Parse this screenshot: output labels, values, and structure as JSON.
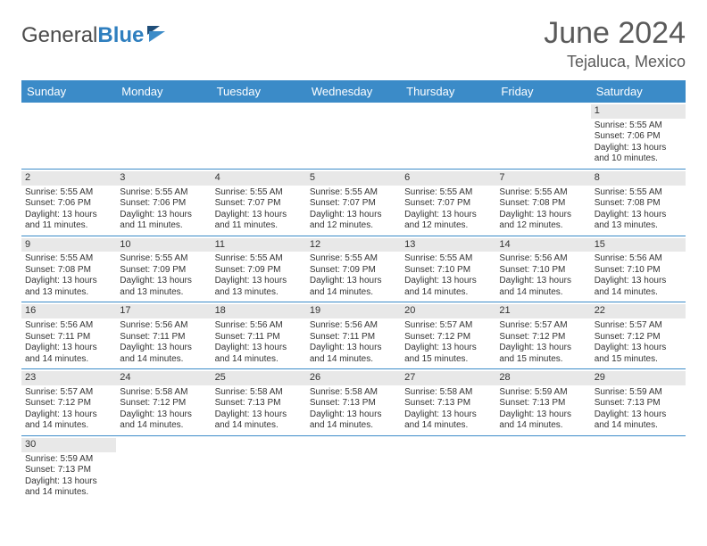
{
  "logo": {
    "text1": "General",
    "text2": "Blue"
  },
  "title": "June 2024",
  "location": "Tejaluca, Mexico",
  "colors": {
    "header_bg": "#3b8bc8",
    "header_text": "#ffffff",
    "daynum_bg": "#e8e8e8",
    "rule": "#3b8bc8",
    "logo_blue": "#2f7fbf",
    "text": "#333333"
  },
  "weekdays": [
    "Sunday",
    "Monday",
    "Tuesday",
    "Wednesday",
    "Thursday",
    "Friday",
    "Saturday"
  ],
  "weeks": [
    [
      {
        "n": "",
        "empty": true
      },
      {
        "n": "",
        "empty": true
      },
      {
        "n": "",
        "empty": true
      },
      {
        "n": "",
        "empty": true
      },
      {
        "n": "",
        "empty": true
      },
      {
        "n": "",
        "empty": true
      },
      {
        "n": "1",
        "sr": "5:55 AM",
        "ss": "7:06 PM",
        "dl": "13 hours and 10 minutes."
      }
    ],
    [
      {
        "n": "2",
        "sr": "5:55 AM",
        "ss": "7:06 PM",
        "dl": "13 hours and 11 minutes."
      },
      {
        "n": "3",
        "sr": "5:55 AM",
        "ss": "7:06 PM",
        "dl": "13 hours and 11 minutes."
      },
      {
        "n": "4",
        "sr": "5:55 AM",
        "ss": "7:07 PM",
        "dl": "13 hours and 11 minutes."
      },
      {
        "n": "5",
        "sr": "5:55 AM",
        "ss": "7:07 PM",
        "dl": "13 hours and 12 minutes."
      },
      {
        "n": "6",
        "sr": "5:55 AM",
        "ss": "7:07 PM",
        "dl": "13 hours and 12 minutes."
      },
      {
        "n": "7",
        "sr": "5:55 AM",
        "ss": "7:08 PM",
        "dl": "13 hours and 12 minutes."
      },
      {
        "n": "8",
        "sr": "5:55 AM",
        "ss": "7:08 PM",
        "dl": "13 hours and 13 minutes."
      }
    ],
    [
      {
        "n": "9",
        "sr": "5:55 AM",
        "ss": "7:08 PM",
        "dl": "13 hours and 13 minutes."
      },
      {
        "n": "10",
        "sr": "5:55 AM",
        "ss": "7:09 PM",
        "dl": "13 hours and 13 minutes."
      },
      {
        "n": "11",
        "sr": "5:55 AM",
        "ss": "7:09 PM",
        "dl": "13 hours and 13 minutes."
      },
      {
        "n": "12",
        "sr": "5:55 AM",
        "ss": "7:09 PM",
        "dl": "13 hours and 14 minutes."
      },
      {
        "n": "13",
        "sr": "5:55 AM",
        "ss": "7:10 PM",
        "dl": "13 hours and 14 minutes."
      },
      {
        "n": "14",
        "sr": "5:56 AM",
        "ss": "7:10 PM",
        "dl": "13 hours and 14 minutes."
      },
      {
        "n": "15",
        "sr": "5:56 AM",
        "ss": "7:10 PM",
        "dl": "13 hours and 14 minutes."
      }
    ],
    [
      {
        "n": "16",
        "sr": "5:56 AM",
        "ss": "7:11 PM",
        "dl": "13 hours and 14 minutes."
      },
      {
        "n": "17",
        "sr": "5:56 AM",
        "ss": "7:11 PM",
        "dl": "13 hours and 14 minutes."
      },
      {
        "n": "18",
        "sr": "5:56 AM",
        "ss": "7:11 PM",
        "dl": "13 hours and 14 minutes."
      },
      {
        "n": "19",
        "sr": "5:56 AM",
        "ss": "7:11 PM",
        "dl": "13 hours and 14 minutes."
      },
      {
        "n": "20",
        "sr": "5:57 AM",
        "ss": "7:12 PM",
        "dl": "13 hours and 15 minutes."
      },
      {
        "n": "21",
        "sr": "5:57 AM",
        "ss": "7:12 PM",
        "dl": "13 hours and 15 minutes."
      },
      {
        "n": "22",
        "sr": "5:57 AM",
        "ss": "7:12 PM",
        "dl": "13 hours and 15 minutes."
      }
    ],
    [
      {
        "n": "23",
        "sr": "5:57 AM",
        "ss": "7:12 PM",
        "dl": "13 hours and 14 minutes."
      },
      {
        "n": "24",
        "sr": "5:58 AM",
        "ss": "7:12 PM",
        "dl": "13 hours and 14 minutes."
      },
      {
        "n": "25",
        "sr": "5:58 AM",
        "ss": "7:13 PM",
        "dl": "13 hours and 14 minutes."
      },
      {
        "n": "26",
        "sr": "5:58 AM",
        "ss": "7:13 PM",
        "dl": "13 hours and 14 minutes."
      },
      {
        "n": "27",
        "sr": "5:58 AM",
        "ss": "7:13 PM",
        "dl": "13 hours and 14 minutes."
      },
      {
        "n": "28",
        "sr": "5:59 AM",
        "ss": "7:13 PM",
        "dl": "13 hours and 14 minutes."
      },
      {
        "n": "29",
        "sr": "5:59 AM",
        "ss": "7:13 PM",
        "dl": "13 hours and 14 minutes."
      }
    ],
    [
      {
        "n": "30",
        "sr": "5:59 AM",
        "ss": "7:13 PM",
        "dl": "13 hours and 14 minutes."
      },
      {
        "n": "",
        "empty": true
      },
      {
        "n": "",
        "empty": true
      },
      {
        "n": "",
        "empty": true
      },
      {
        "n": "",
        "empty": true
      },
      {
        "n": "",
        "empty": true
      },
      {
        "n": "",
        "empty": true
      }
    ]
  ],
  "labels": {
    "sunrise": "Sunrise:",
    "sunset": "Sunset:",
    "daylight": "Daylight:"
  }
}
